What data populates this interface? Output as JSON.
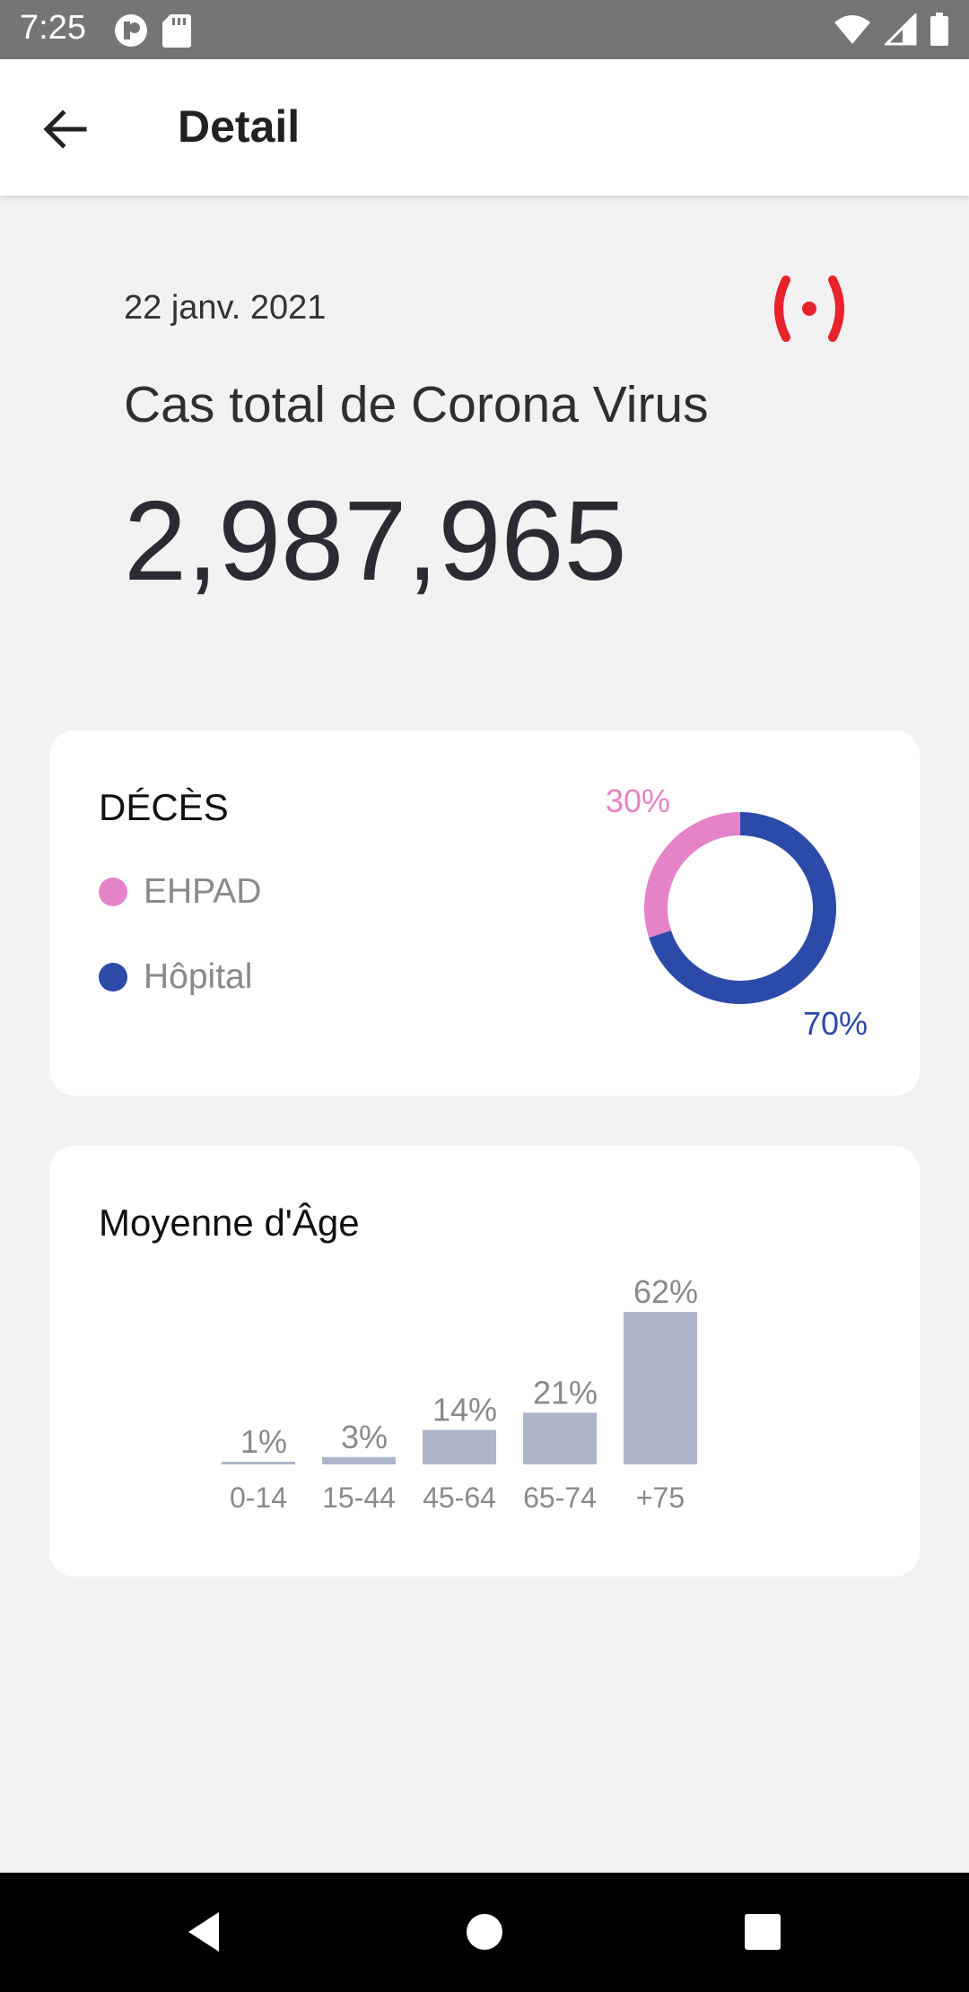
{
  "status_bar": {
    "time": "7:25",
    "icons": [
      "app-notification-icon",
      "sd-card-icon",
      "wifi-icon",
      "signal-icon",
      "battery-icon"
    ]
  },
  "app_bar": {
    "title": "Detail",
    "back_icon": "arrow-back-icon"
  },
  "summary": {
    "date": "22 janv. 2021",
    "label": "Cas total de Corona Virus",
    "value": "2,987,965",
    "live_icon": "live-broadcast-icon",
    "live_color": "#e8232b"
  },
  "deaths_card": {
    "title": "DÉCÈS",
    "legend": [
      {
        "label": "EHPAD",
        "color": "#e583c8"
      },
      {
        "label": "Hôpital",
        "color": "#2c4aa8"
      }
    ]
  },
  "age_card": {
    "title": "Moyenne d'Âge"
  },
  "chart_data": [
    {
      "type": "pie",
      "donut": true,
      "labels": [
        "EHPAD",
        "Hôpital"
      ],
      "values": [
        30,
        70
      ],
      "value_labels": [
        "30%",
        "70%"
      ],
      "colors": [
        "#e583c8",
        "#2c4aa8"
      ]
    },
    {
      "type": "bar",
      "categories": [
        "0-14",
        "15-44",
        "45-64",
        "65-74",
        "+75"
      ],
      "values": [
        1,
        3,
        14,
        21,
        62
      ],
      "value_labels": [
        "1%",
        "3%",
        "14%",
        "21%",
        "62%"
      ],
      "bar_color": "#adb6c9",
      "grid": false
    }
  ],
  "nav_bar": {
    "icons": [
      "nav-back-icon",
      "nav-home-icon",
      "nav-recents-icon"
    ]
  }
}
